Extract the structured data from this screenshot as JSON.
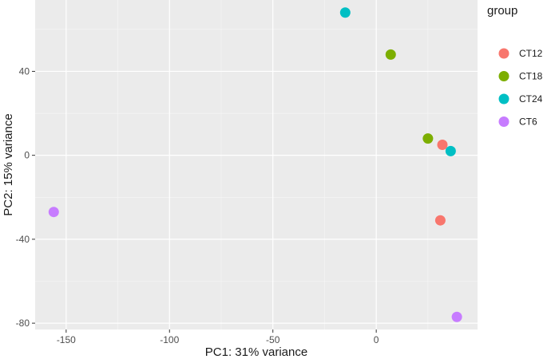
{
  "chart_data": {
    "type": "scatter",
    "xlabel": "PC1: 31% variance",
    "ylabel": "PC2: 15% variance",
    "xlim": [
      -165,
      49
    ],
    "ylim": [
      -83,
      74
    ],
    "x_ticks": [
      -150,
      -100,
      -50,
      0
    ],
    "y_ticks": [
      -80,
      -40,
      0,
      40
    ],
    "x_minor_ticks": [
      -125,
      -75,
      -25,
      25
    ],
    "y_minor_ticks": [
      -60,
      -20,
      20,
      60
    ],
    "grid": true,
    "legend": {
      "title": "group",
      "position": "right"
    },
    "series": [
      {
        "name": "CT12",
        "color": "#F8766D",
        "points": [
          [
            32,
            5
          ],
          [
            31,
            -31
          ]
        ]
      },
      {
        "name": "CT18",
        "color": "#7CAE00",
        "points": [
          [
            7,
            48
          ],
          [
            25,
            8
          ]
        ]
      },
      {
        "name": "CT24",
        "color": "#00BFC4",
        "points": [
          [
            -15,
            68
          ],
          [
            36,
            2
          ]
        ]
      },
      {
        "name": "CT6",
        "color": "#C77CFF",
        "points": [
          [
            -156,
            -27
          ],
          [
            39,
            -77
          ]
        ]
      }
    ]
  }
}
